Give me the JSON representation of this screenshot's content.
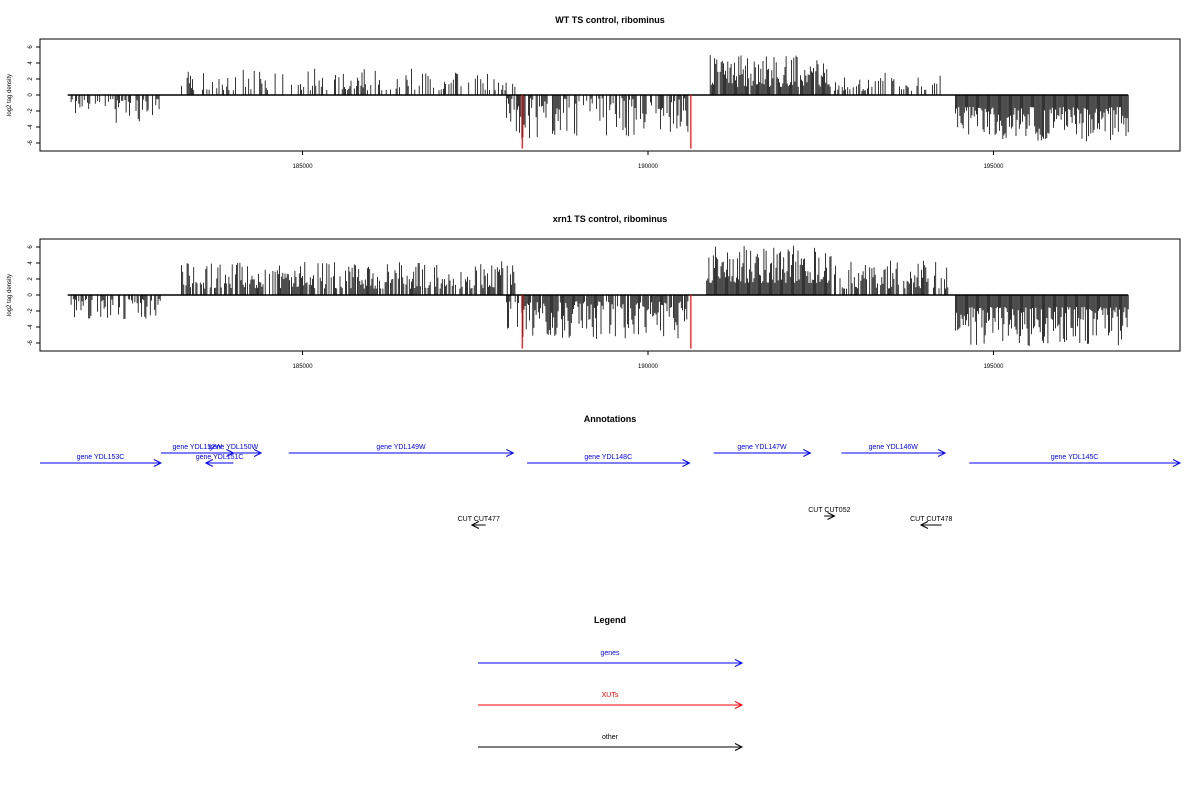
{
  "chart_data": [
    {
      "type": "bar",
      "title": "WT TS control, ribominus",
      "ylabel": "log2 tag density",
      "xlabel": "",
      "xlim": [
        181200,
        197700
      ],
      "ylim": [
        -7,
        7
      ],
      "x_ticks": [
        185000,
        190000,
        195000
      ],
      "y_ticks": [
        6,
        4,
        2,
        0,
        -2,
        -4,
        -6
      ],
      "grid": false,
      "bar_color": "#000000",
      "segments": [
        {
          "from": 181650,
          "to": 182950,
          "sign": -1,
          "min": 0.5,
          "max": 3.5,
          "density": 0.55,
          "seed": 11
        },
        {
          "from": 183250,
          "to": 188080,
          "sign": 1,
          "min": 0.6,
          "max": 3.3,
          "density": 0.4,
          "seed": 23
        },
        {
          "from": 187950,
          "to": 190600,
          "sign": -1,
          "min": 0.4,
          "max": 5.5,
          "density": 0.6,
          "seed": 37
        },
        {
          "from": 190900,
          "to": 192650,
          "sign": 1,
          "min": 1.0,
          "max": 5.0,
          "density": 0.95,
          "seed": 41
        },
        {
          "from": 192700,
          "to": 194300,
          "sign": 1,
          "min": 0.5,
          "max": 2.8,
          "density": 0.35,
          "seed": 53
        },
        {
          "from": 194450,
          "to": 196950,
          "sign": -1,
          "min": 1.5,
          "max": 5.8,
          "density": 1.0,
          "seed": 67
        }
      ],
      "highlights": [
        {
          "x": 188180,
          "y": -6.7,
          "color": "#ff0000"
        },
        {
          "x": 190620,
          "y": -6.7,
          "color": "#ff0000"
        }
      ],
      "track_start": 181600,
      "track_end": 196950
    },
    {
      "type": "bar",
      "title": "xrn1 TS control, ribominus",
      "ylabel": "log2 tag density",
      "xlabel": "",
      "xlim": [
        181200,
        197700
      ],
      "ylim": [
        -7,
        7
      ],
      "x_ticks": [
        185000,
        190000,
        195000
      ],
      "y_ticks": [
        6,
        4,
        2,
        0,
        -2,
        -4,
        -6
      ],
      "grid": false,
      "bar_color": "#000000",
      "segments": [
        {
          "from": 181650,
          "to": 182950,
          "sign": -1,
          "min": 0.5,
          "max": 3.0,
          "density": 0.6,
          "seed": 13
        },
        {
          "from": 183250,
          "to": 188080,
          "sign": 1,
          "min": 0.8,
          "max": 4.2,
          "density": 0.75,
          "seed": 29
        },
        {
          "from": 187950,
          "to": 190600,
          "sign": -1,
          "min": 0.8,
          "max": 5.5,
          "density": 0.85,
          "seed": 31
        },
        {
          "from": 190850,
          "to": 192650,
          "sign": 1,
          "min": 1.5,
          "max": 6.3,
          "density": 1.0,
          "seed": 43
        },
        {
          "from": 192700,
          "to": 194350,
          "sign": 1,
          "min": 0.8,
          "max": 4.5,
          "density": 0.7,
          "seed": 59
        },
        {
          "from": 194450,
          "to": 196950,
          "sign": -1,
          "min": 1.5,
          "max": 6.5,
          "density": 1.0,
          "seed": 71
        }
      ],
      "highlights": [
        {
          "x": 188180,
          "y": -6.7,
          "color": "#ff0000"
        },
        {
          "x": 190620,
          "y": -6.7,
          "color": "#ff0000"
        }
      ],
      "track_start": 181600,
      "track_end": 196950
    }
  ],
  "annotations": {
    "title": "Annotations",
    "xlim": [
      181200,
      197700
    ],
    "genes": [
      {
        "label": "gene YDL153C",
        "from": 181200,
        "to": 182950,
        "strand": "-",
        "row": 1,
        "color": "#0000ff"
      },
      {
        "label": "gene YDL152W",
        "from": 182950,
        "to": 184000,
        "strand": "+",
        "row": 0,
        "color": "#0000ff"
      },
      {
        "label": "gene YDL151C",
        "from": 184000,
        "to": 183600,
        "strand": "-",
        "row": 1,
        "color": "#0000ff"
      },
      {
        "label": "gene YDL150W",
        "from": 183600,
        "to": 184400,
        "strand": "+",
        "row": 0,
        "color": "#0000ff"
      },
      {
        "label": "gene YDL149W",
        "from": 184800,
        "to": 188050,
        "strand": "+",
        "row": 0,
        "color": "#0000ff"
      },
      {
        "label": "gene YDL148C",
        "from": 188250,
        "to": 190600,
        "strand": "-",
        "row": 1,
        "color": "#0000ff"
      },
      {
        "label": "gene YDL147W",
        "from": 190950,
        "to": 192350,
        "strand": "+",
        "row": 0,
        "color": "#0000ff"
      },
      {
        "label": "gene YDL146W",
        "from": 192800,
        "to": 194300,
        "strand": "+",
        "row": 0,
        "color": "#0000ff"
      },
      {
        "label": "gene YDL145C",
        "from": 194650,
        "to": 197700,
        "strand": "-",
        "row": 1,
        "color": "#0000ff"
      }
    ],
    "cuts": [
      {
        "label": "CUT CUT477",
        "from": 187650,
        "to": 187450,
        "strand": "-",
        "row": 1,
        "color": "#000000"
      },
      {
        "label": "CUT CUT052",
        "from": 192550,
        "to": 192700,
        "strand": "+",
        "row": 0,
        "color": "#000000"
      },
      {
        "label": "CUT CUT478",
        "from": 194250,
        "to": 193950,
        "strand": "-",
        "row": 1,
        "color": "#000000"
      }
    ]
  },
  "legend": {
    "title": "Legend",
    "items": [
      {
        "label": "genes",
        "color": "#0000ff"
      },
      {
        "label": "XUTs",
        "color": "#ff0000"
      },
      {
        "label": "other",
        "color": "#000000"
      }
    ]
  }
}
